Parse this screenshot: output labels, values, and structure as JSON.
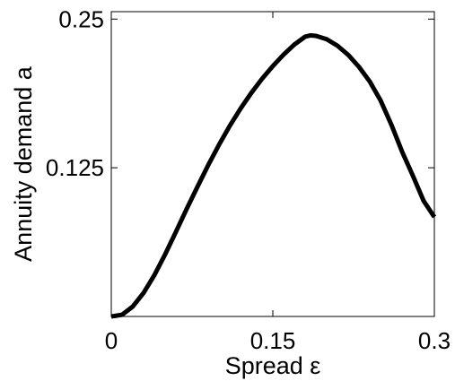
{
  "chart_data": {
    "type": "line",
    "xlabel": "Spread ε",
    "ylabel": "Annuity demand a",
    "xlim": [
      0,
      0.3
    ],
    "ylim": [
      0,
      0.25625
    ],
    "xticks": [
      0,
      0.15,
      0.3
    ],
    "xtick_labels": [
      "0",
      "0.15",
      "0.3"
    ],
    "yticks": [
      0.125,
      0.25
    ],
    "ytick_labels": [
      "0.125",
      "0.25"
    ],
    "grid": false,
    "colors": {
      "line": "#000000",
      "axes": "#000000"
    },
    "series": [
      {
        "x": [
          0,
          0.01,
          0.02,
          0.03,
          0.04,
          0.05,
          0.06,
          0.07,
          0.08,
          0.09,
          0.1,
          0.11,
          0.12,
          0.13,
          0.14,
          0.15,
          0.16,
          0.17,
          0.18,
          0.185,
          0.19,
          0.2,
          0.21,
          0.22,
          0.23,
          0.24,
          0.25,
          0.26,
          0.27,
          0.28,
          0.29,
          0.3
        ],
        "y": [
          0.0,
          0.0014,
          0.0084,
          0.0198,
          0.0347,
          0.0522,
          0.0711,
          0.0904,
          0.109,
          0.1272,
          0.1443,
          0.1602,
          0.1747,
          0.1879,
          0.1998,
          0.2105,
          0.2201,
          0.2286,
          0.2352,
          0.2363,
          0.2359,
          0.2331,
          0.2276,
          0.2199,
          0.2098,
          0.1975,
          0.1817,
          0.1614,
          0.1386,
          0.1184,
          0.0972,
          0.0836
        ]
      }
    ]
  }
}
